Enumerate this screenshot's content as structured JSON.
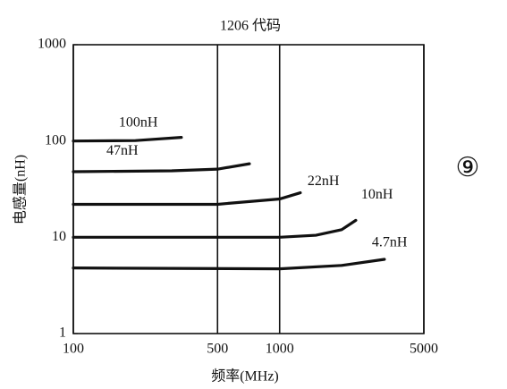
{
  "chart_data": {
    "type": "line",
    "title": "1206 代码",
    "xlabel": "频率(MHz)",
    "ylabel": "电感量(nH)",
    "annotation": "⑨",
    "xscale": "log",
    "yscale": "log",
    "grid": "x",
    "color": "#111111",
    "xlim": [
      100,
      5000
    ],
    "xticks": [
      100,
      500,
      1000,
      5000
    ],
    "ylim": [
      1,
      1000
    ],
    "yticks": [
      1,
      10,
      100,
      1000
    ],
    "series": [
      {
        "name": "100nH",
        "x": [
          100,
          200,
          334
        ],
        "values": [
          100,
          101,
          109
        ]
      },
      {
        "name": "47nH",
        "x": [
          100,
          300,
          500,
          714
        ],
        "values": [
          48,
          49,
          51,
          58
        ]
      },
      {
        "name": "22nH",
        "x": [
          100,
          500,
          1000,
          1260
        ],
        "values": [
          22,
          22,
          25,
          29
        ]
      },
      {
        "name": "10nH",
        "x": [
          100,
          1000,
          1500,
          2000,
          2340
        ],
        "values": [
          10,
          10,
          10.5,
          12,
          15
        ]
      },
      {
        "name": "4.7nH",
        "x": [
          100,
          1000,
          2000,
          3220
        ],
        "values": [
          4.8,
          4.7,
          5.1,
          5.9
        ]
      }
    ]
  }
}
